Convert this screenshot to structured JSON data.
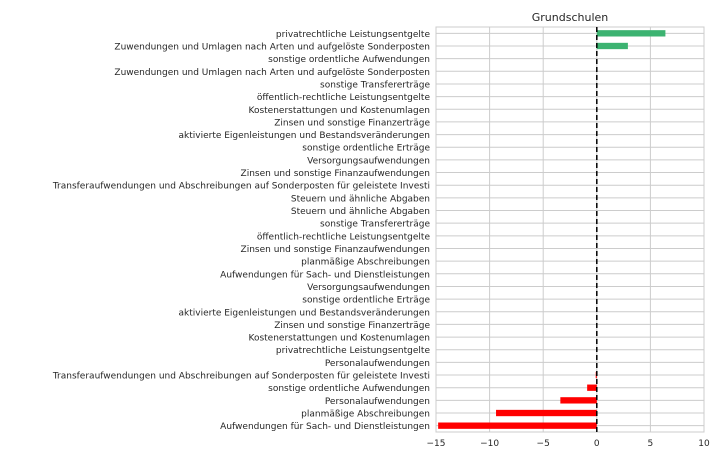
{
  "chart_data": {
    "type": "bar",
    "orientation": "horizontal",
    "title": "Grundschulen",
    "xlabel": "",
    "ylabel": "",
    "xlim": [
      -15,
      10
    ],
    "xticks": [
      -15,
      -10,
      -5,
      0,
      5,
      10
    ],
    "xtick_labels": [
      "−15",
      "−10",
      "−5",
      "0",
      "5",
      "10"
    ],
    "grid": true,
    "colors": {
      "positive": "#3cb371",
      "negative": "#ff0000",
      "zero_line": "#000000",
      "grid": "#cccccc"
    },
    "categories": [
      "privatrechtliche Leistungsentgelte",
      "Zuwendungen und Umlagen nach Arten und aufgelöste Sonderposten",
      "sonstige ordentliche Aufwendungen",
      "Zuwendungen und Umlagen nach Arten und aufgelöste Sonderposten",
      "sonstige Transfererträge",
      "öffentlich-rechtliche Leistungsentgelte",
      "Kostenerstattungen und Kostenumlagen",
      "Zinsen und sonstige Finanzerträge",
      "aktivierte Eigenleistungen und Bestandsveränderungen",
      "sonstige ordentliche Erträge",
      "Versorgungsaufwendungen",
      "Zinsen und sonstige Finanzaufwendungen",
      "Transferaufwendungen und Abschreibungen auf Sonderposten für geleistete Investi",
      "Steuern und ähnliche Abgaben",
      "Steuern und ähnliche Abgaben",
      "sonstige Transfererträge",
      "öffentlich-rechtliche Leistungsentgelte",
      "Zinsen und sonstige Finanzaufwendungen",
      "planmäßige Abschreibungen",
      "Aufwendungen für Sach- und Dienstleistungen",
      "Versorgungsaufwendungen",
      "sonstige ordentliche Erträge",
      "aktivierte Eigenleistungen und Bestandsveränderungen",
      "Zinsen und sonstige Finanzerträge",
      "Kostenerstattungen und Kostenumlagen",
      "privatrechtliche Leistungsentgelte",
      "Personalaufwendungen",
      "Transferaufwendungen und Abschreibungen auf Sonderposten für geleistete Investi",
      "sonstige ordentliche Aufwendungen",
      "Personalaufwendungen",
      "planmäßige Abschreibungen",
      "Aufwendungen für Sach- und Dienstleistungen"
    ],
    "values": [
      6.4,
      2.9,
      0,
      0,
      0,
      0,
      0,
      0,
      0,
      0,
      0,
      0,
      0,
      0,
      0,
      0,
      0,
      0,
      0,
      0,
      0,
      0,
      0,
      0,
      0,
      0,
      0,
      -0.1,
      -0.9,
      -3.4,
      -9.4,
      -14.8
    ]
  }
}
